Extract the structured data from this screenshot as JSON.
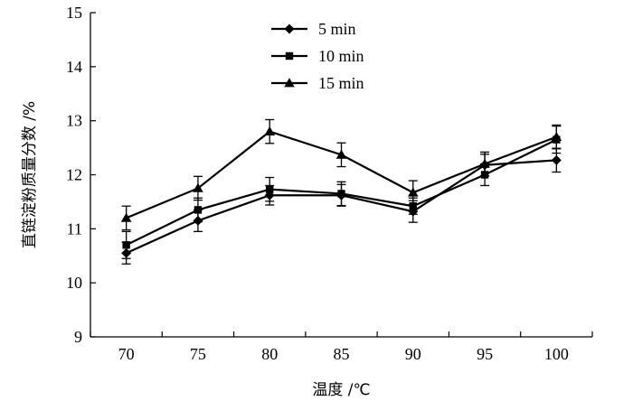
{
  "chart_data": {
    "type": "line",
    "title": "",
    "xlabel": "温度 /℃",
    "ylabel": "直链淀粉质量分数 /%",
    "categories": [
      "70",
      "75",
      "80",
      "85",
      "90",
      "95",
      "100"
    ],
    "ylim": [
      9,
      15
    ],
    "yticks": [
      "9",
      "10",
      "11",
      "12",
      "13",
      "14",
      "15"
    ],
    "grid": false,
    "legend_position": "top-left",
    "series": [
      {
        "name": "5 min",
        "marker": "diamond",
        "values": [
          10.55,
          11.15,
          11.62,
          11.62,
          11.32,
          12.18,
          12.27
        ],
        "errors": [
          0.2,
          0.2,
          0.18,
          0.2,
          0.2,
          0.2,
          0.22
        ]
      },
      {
        "name": "10 min",
        "marker": "square",
        "values": [
          10.7,
          11.35,
          11.73,
          11.65,
          11.42,
          12.0,
          12.65
        ],
        "errors": [
          0.25,
          0.22,
          0.22,
          0.22,
          0.15,
          0.2,
          0.25
        ]
      },
      {
        "name": "15 min",
        "marker": "triangle",
        "values": [
          11.2,
          11.75,
          12.8,
          12.37,
          11.67,
          12.2,
          12.7
        ],
        "errors": [
          0.22,
          0.22,
          0.22,
          0.22,
          0.22,
          0.22,
          0.22
        ]
      }
    ],
    "colors": {
      "line": "#000000"
    }
  }
}
